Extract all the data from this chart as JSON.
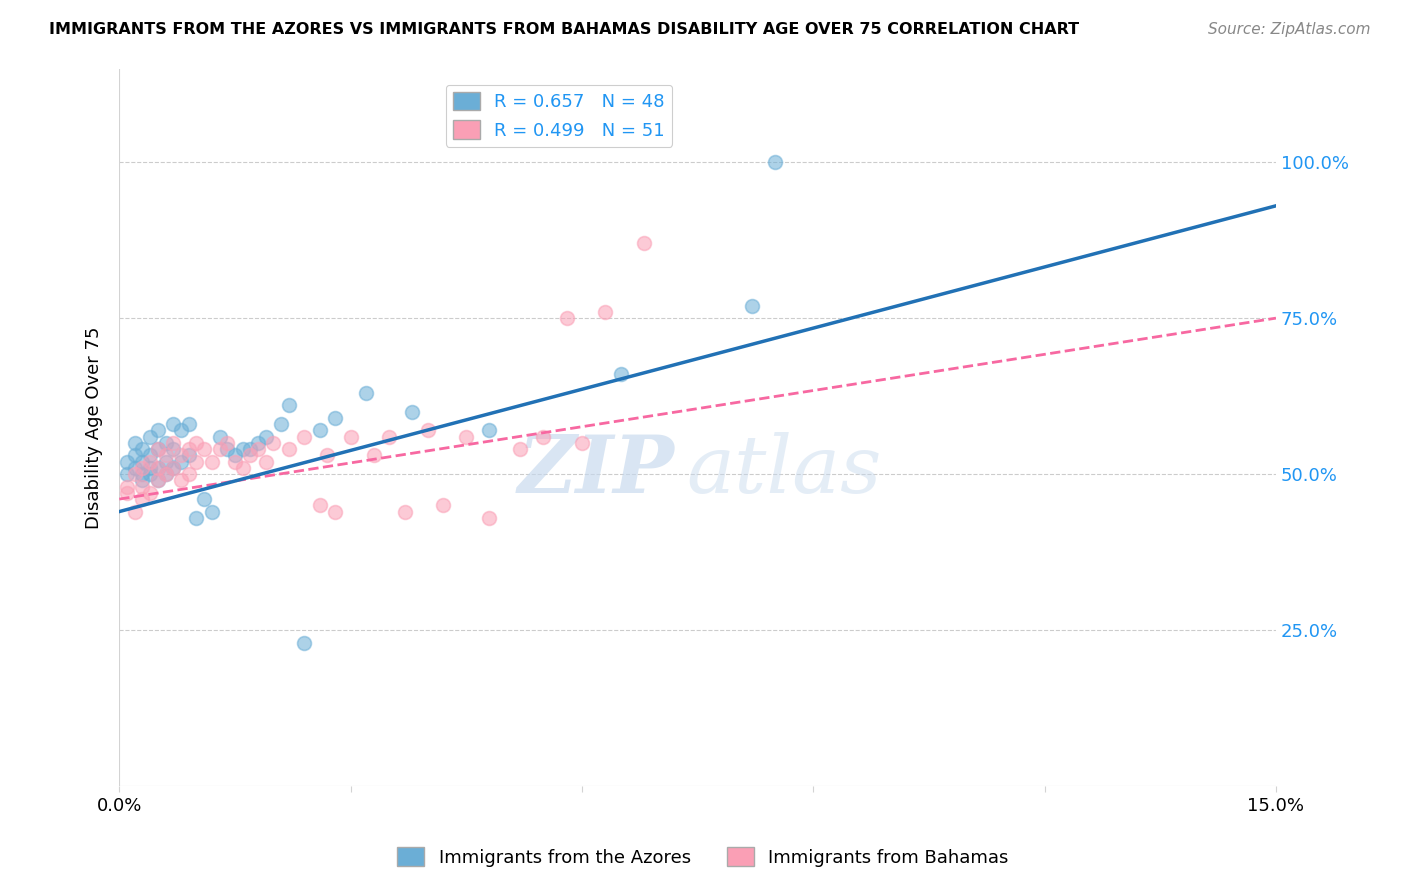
{
  "title": "IMMIGRANTS FROM THE AZORES VS IMMIGRANTS FROM BAHAMAS DISABILITY AGE OVER 75 CORRELATION CHART",
  "source": "Source: ZipAtlas.com",
  "ylabel": "Disability Age Over 75",
  "xmin": 0.0,
  "xmax": 0.15,
  "ymin": 0.0,
  "ymax": 1.15,
  "yticks": [
    0.25,
    0.5,
    0.75,
    1.0
  ],
  "ytick_labels": [
    "25.0%",
    "50.0%",
    "75.0%",
    "100.0%"
  ],
  "xticks": [
    0.0,
    0.03,
    0.06,
    0.09,
    0.12,
    0.15
  ],
  "xtick_labels": [
    "0.0%",
    "",
    "",
    "",
    "",
    "15.0%"
  ],
  "legend_azores_r": "0.657",
  "legend_azores_n": "48",
  "legend_bahamas_r": "0.499",
  "legend_bahamas_n": "51",
  "color_azores": "#6baed6",
  "color_bahamas": "#fa9fb5",
  "color_azores_line": "#2171b5",
  "color_bahamas_line": "#f768a1",
  "azores_x": [
    0.001,
    0.001,
    0.002,
    0.002,
    0.002,
    0.003,
    0.003,
    0.003,
    0.003,
    0.004,
    0.004,
    0.004,
    0.004,
    0.005,
    0.005,
    0.005,
    0.005,
    0.006,
    0.006,
    0.006,
    0.007,
    0.007,
    0.007,
    0.008,
    0.008,
    0.009,
    0.009,
    0.01,
    0.011,
    0.012,
    0.013,
    0.014,
    0.015,
    0.016,
    0.017,
    0.018,
    0.019,
    0.021,
    0.022,
    0.024,
    0.026,
    0.028,
    0.032,
    0.038,
    0.048,
    0.065,
    0.082,
    0.085
  ],
  "azores_y": [
    0.5,
    0.52,
    0.51,
    0.53,
    0.55,
    0.49,
    0.5,
    0.52,
    0.54,
    0.5,
    0.51,
    0.53,
    0.56,
    0.49,
    0.51,
    0.54,
    0.57,
    0.5,
    0.52,
    0.55,
    0.51,
    0.54,
    0.58,
    0.52,
    0.57,
    0.53,
    0.58,
    0.43,
    0.46,
    0.44,
    0.56,
    0.54,
    0.53,
    0.54,
    0.54,
    0.55,
    0.56,
    0.58,
    0.61,
    0.23,
    0.57,
    0.59,
    0.63,
    0.6,
    0.57,
    0.66,
    0.77,
    1.0
  ],
  "bahamas_x": [
    0.001,
    0.001,
    0.002,
    0.002,
    0.003,
    0.003,
    0.003,
    0.004,
    0.004,
    0.005,
    0.005,
    0.005,
    0.006,
    0.006,
    0.007,
    0.007,
    0.008,
    0.008,
    0.009,
    0.009,
    0.01,
    0.01,
    0.011,
    0.012,
    0.013,
    0.014,
    0.015,
    0.016,
    0.017,
    0.018,
    0.019,
    0.02,
    0.022,
    0.024,
    0.026,
    0.027,
    0.028,
    0.03,
    0.033,
    0.035,
    0.037,
    0.04,
    0.042,
    0.045,
    0.048,
    0.052,
    0.055,
    0.058,
    0.06,
    0.063,
    0.068
  ],
  "bahamas_y": [
    0.47,
    0.48,
    0.44,
    0.5,
    0.46,
    0.48,
    0.51,
    0.47,
    0.52,
    0.49,
    0.51,
    0.54,
    0.5,
    0.53,
    0.51,
    0.55,
    0.49,
    0.53,
    0.5,
    0.54,
    0.52,
    0.55,
    0.54,
    0.52,
    0.54,
    0.55,
    0.52,
    0.51,
    0.53,
    0.54,
    0.52,
    0.55,
    0.54,
    0.56,
    0.45,
    0.53,
    0.44,
    0.56,
    0.53,
    0.56,
    0.44,
    0.57,
    0.45,
    0.56,
    0.43,
    0.54,
    0.56,
    0.75,
    0.55,
    0.76,
    0.87
  ],
  "azores_line_x0": 0.0,
  "azores_line_y0": 0.44,
  "azores_line_x1": 0.15,
  "azores_line_y1": 0.93,
  "bahamas_line_x0": 0.0,
  "bahamas_line_y0": 0.46,
  "bahamas_line_x1": 0.15,
  "bahamas_line_y1": 0.75,
  "watermark_text": "ZIP",
  "watermark_text2": "atlas",
  "background_color": "#ffffff",
  "grid_color": "#cccccc"
}
